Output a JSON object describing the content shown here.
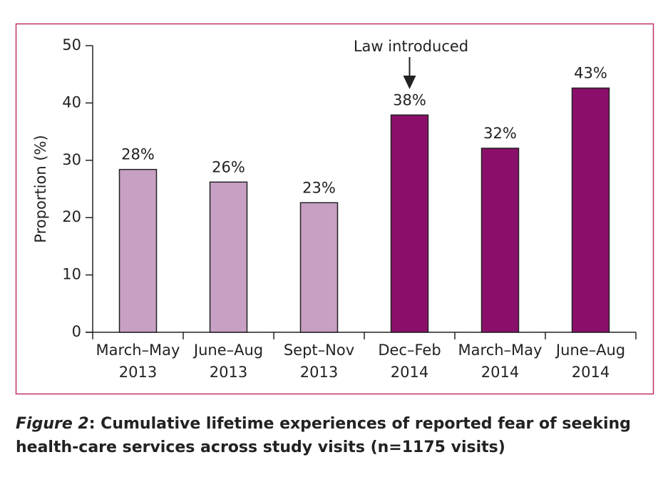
{
  "chart_data": {
    "type": "bar",
    "categories": [
      [
        "March–May",
        "2013"
      ],
      [
        "June–Aug",
        "2013"
      ],
      [
        "Sept–Nov",
        "2013"
      ],
      [
        "Dec–Feb",
        "2014"
      ],
      [
        "March–May",
        "2014"
      ],
      [
        "June–Aug",
        "2014"
      ]
    ],
    "values": [
      28.4,
      26.2,
      22.6,
      37.9,
      32.1,
      42.6
    ],
    "value_labels": [
      "28%",
      "26%",
      "23%",
      "38%",
      "32%",
      "43%"
    ],
    "colors": [
      "#c8a0c4",
      "#c8a0c4",
      "#c8a0c4",
      "#8b0f6a",
      "#8b0f6a",
      "#8b0f6a"
    ],
    "ylabel": "Proportion (%)",
    "ylim": [
      0,
      50
    ],
    "yticks": [
      0,
      10,
      20,
      30,
      40,
      50
    ],
    "annotation": {
      "text": "Law introduced",
      "category_index": 3
    },
    "caption": {
      "label": "Figure 2",
      "text": ": Cumulative lifetime experiences of reported fear of seeking health-care services across study visits (n=1175 visits)"
    }
  }
}
